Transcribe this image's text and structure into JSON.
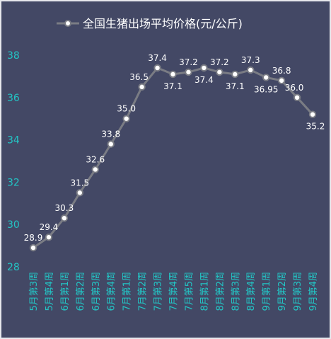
{
  "chart_data": {
    "type": "line",
    "series": [
      {
        "name": "全国生猪出场平均价格(元/公斤)",
        "values": [
          28.9,
          29.4,
          30.3,
          31.5,
          32.6,
          33.8,
          35.0,
          36.5,
          37.4,
          37.1,
          37.2,
          37.4,
          37.2,
          37.1,
          37.3,
          36.95,
          36.8,
          36.0,
          35.2
        ]
      }
    ],
    "categories": [
      "5月第3周",
      "5月第4周",
      "6月第1周",
      "6月第2周",
      "6月第3周",
      "6月第4周",
      "7月第1周",
      "7月第2周",
      "7月第3周",
      "7月第4周",
      "7月第5周",
      "8月第1周",
      "8月第2周",
      "8月第3周",
      "8月第4周",
      "9月第1周",
      "9月第2周",
      "9月第3周",
      "9月第4周"
    ],
    "data_labels": [
      "28.9",
      "29.4",
      "30.3",
      "31.5",
      "32.6",
      "33.8",
      "35.0",
      "36.5",
      "37.4",
      "37.1",
      "37.2",
      "37.4",
      "37.2",
      "37.1",
      "37.3",
      "36.95",
      "36.8",
      "36.0",
      "35.2"
    ],
    "yticks": [
      "28",
      "30",
      "32",
      "34",
      "36",
      "38"
    ],
    "ylim": [
      28,
      38.5
    ],
    "grid": false,
    "legend_position": "top",
    "colors": {
      "background": "#434865",
      "line": "#7a7c84",
      "marker_fill": "#ffffff",
      "tick_text": "#23c5c5",
      "label_text": "#ffffff"
    }
  }
}
